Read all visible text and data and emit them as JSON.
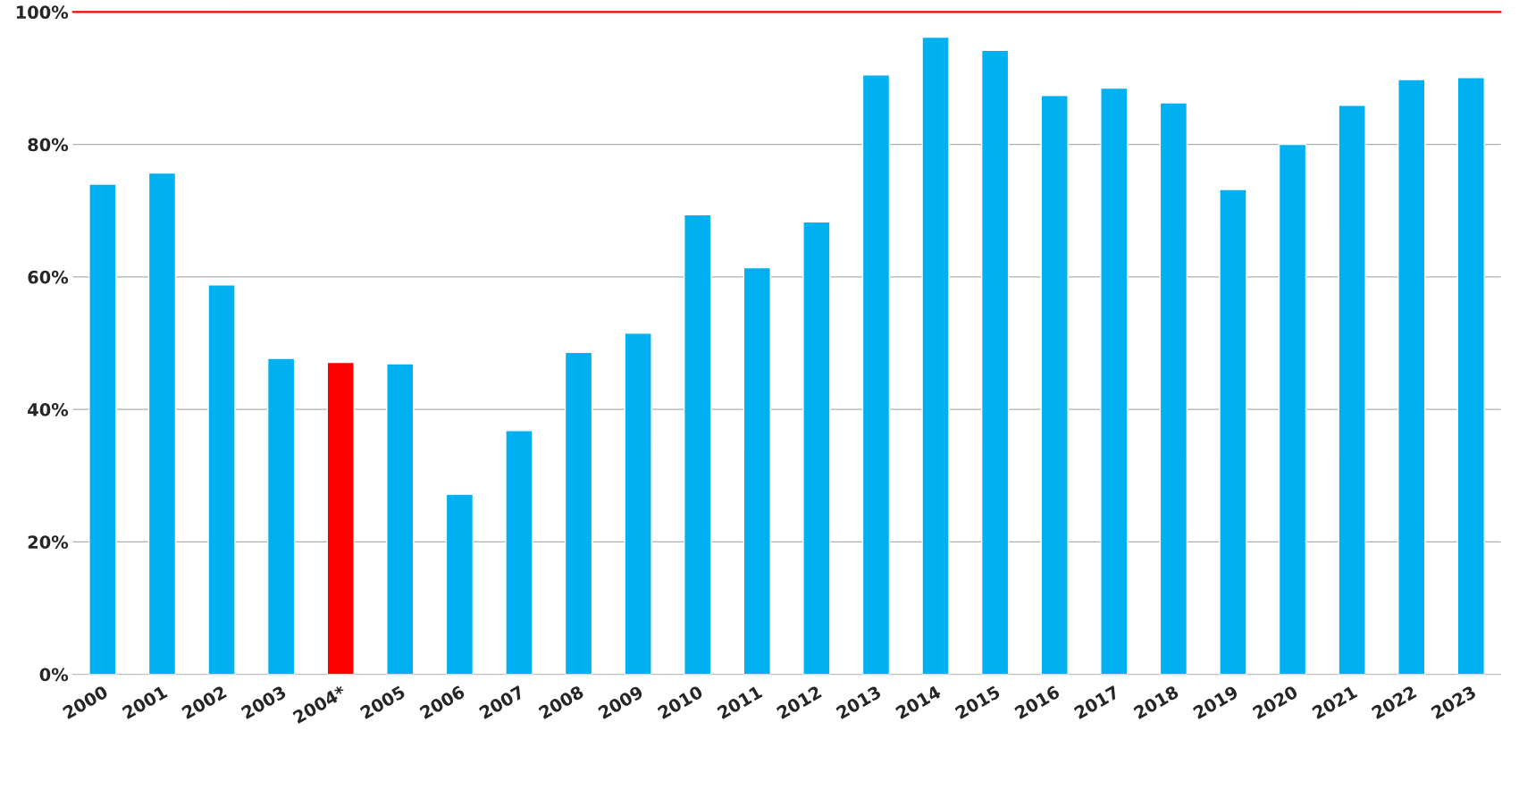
{
  "chart_data": {
    "type": "bar",
    "categories": [
      "2000",
      "2001",
      "2002",
      "2003",
      "2004*",
      "2005",
      "2006",
      "2007",
      "2008",
      "2009",
      "2010",
      "2011",
      "2012",
      "2013",
      "2014",
      "2015",
      "2016",
      "2017",
      "2018",
      "2019",
      "2020",
      "2021",
      "2022",
      "2023"
    ],
    "values": [
      74.0,
      75.7,
      58.8,
      47.7,
      47.1,
      46.9,
      27.2,
      36.8,
      48.6,
      51.5,
      69.4,
      61.4,
      68.3,
      90.5,
      96.2,
      94.2,
      87.4,
      88.5,
      86.3,
      73.2,
      80.0,
      85.9,
      89.8,
      90.1
    ],
    "colors": [
      "#00b0f0",
      "#00b0f0",
      "#00b0f0",
      "#00b0f0",
      "#ff0000",
      "#00b0f0",
      "#00b0f0",
      "#00b0f0",
      "#00b0f0",
      "#00b0f0",
      "#00b0f0",
      "#00b0f0",
      "#00b0f0",
      "#00b0f0",
      "#00b0f0",
      "#00b0f0",
      "#00b0f0",
      "#00b0f0",
      "#00b0f0",
      "#00b0f0",
      "#00b0f0",
      "#00b0f0",
      "#00b0f0",
      "#00b0f0"
    ],
    "ylim": [
      0,
      100
    ],
    "yticks": [
      {
        "value": 0,
        "label": "0%"
      },
      {
        "value": 20,
        "label": "20%"
      },
      {
        "value": 40,
        "label": "40%"
      },
      {
        "value": 60,
        "label": "60%"
      },
      {
        "value": 80,
        "label": "80%"
      },
      {
        "value": 100,
        "label": "100%"
      }
    ],
    "ref_lines": [
      {
        "axis": "y",
        "value": 100,
        "color": "#ff0000"
      }
    ],
    "grid": "y",
    "legend": false
  }
}
